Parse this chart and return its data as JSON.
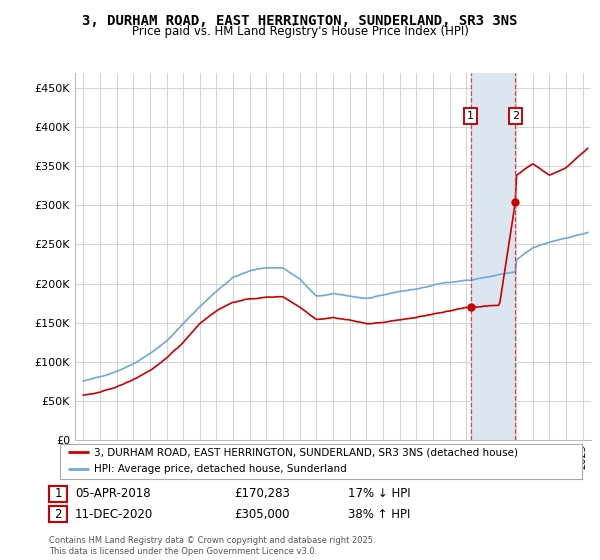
{
  "title": "3, DURHAM ROAD, EAST HERRINGTON, SUNDERLAND, SR3 3NS",
  "subtitle": "Price paid vs. HM Land Registry's House Price Index (HPI)",
  "ylabel_ticks": [
    "£0",
    "£50K",
    "£100K",
    "£150K",
    "£200K",
    "£250K",
    "£300K",
    "£350K",
    "£400K",
    "£450K"
  ],
  "ytick_values": [
    0,
    50000,
    100000,
    150000,
    200000,
    250000,
    300000,
    350000,
    400000,
    450000
  ],
  "ylim": [
    0,
    470000
  ],
  "xlim_start": 1994.5,
  "xlim_end": 2025.5,
  "marker1_x": 2018.27,
  "marker1_y": 170283,
  "marker2_x": 2020.95,
  "marker2_y": 305000,
  "sale1_date": "05-APR-2018",
  "sale1_price": "£170,283",
  "sale1_note": "17% ↓ HPI",
  "sale2_date": "11-DEC-2020",
  "sale2_price": "£305,000",
  "sale2_note": "38% ↑ HPI",
  "legend_line1": "3, DURHAM ROAD, EAST HERRINGTON, SUNDERLAND, SR3 3NS (detached house)",
  "legend_line2": "HPI: Average price, detached house, Sunderland",
  "footer": "Contains HM Land Registry data © Crown copyright and database right 2025.\nThis data is licensed under the Open Government Licence v3.0.",
  "hpi_color": "#6fa8dc",
  "price_color": "#cc0000",
  "shade_color": "#dce6f1",
  "grid_color": "#cccccc",
  "background_color": "#ffffff"
}
